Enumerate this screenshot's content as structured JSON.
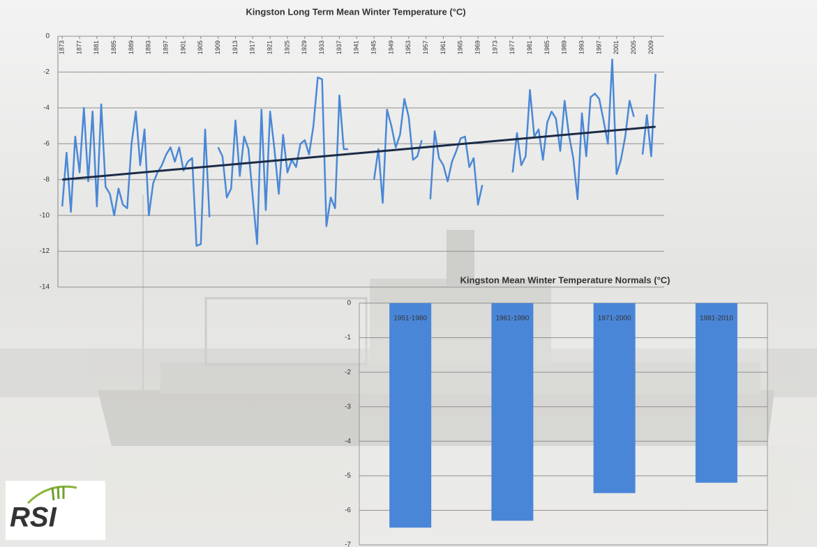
{
  "chart_data": [
    {
      "type": "line",
      "title": "Kingston Long Term Mean Winter Temperature (°C)",
      "x": [
        1873,
        1874,
        1875,
        1876,
        1877,
        1878,
        1879,
        1880,
        1881,
        1882,
        1883,
        1884,
        1885,
        1886,
        1887,
        1888,
        1889,
        1890,
        1891,
        1892,
        1893,
        1894,
        1895,
        1896,
        1897,
        1898,
        1899,
        1900,
        1901,
        1902,
        1903,
        1904,
        1905,
        1906,
        1907,
        1908,
        1909,
        1910,
        1911,
        1912,
        1913,
        1914,
        1915,
        1916,
        1917,
        1918,
        1919,
        1920,
        1921,
        1922,
        1923,
        1924,
        1925,
        1926,
        1927,
        1928,
        1929,
        1930,
        1931,
        1932,
        1933,
        1934,
        1935,
        1936,
        1937,
        1938,
        1939,
        1940,
        1941,
        1942,
        1943,
        1944,
        1945,
        1946,
        1947,
        1948,
        1949,
        1950,
        1951,
        1952,
        1953,
        1954,
        1955,
        1956,
        1957,
        1958,
        1959,
        1960,
        1961,
        1962,
        1963,
        1964,
        1965,
        1966,
        1967,
        1968,
        1969,
        1970,
        1971,
        1972,
        1973,
        1974,
        1975,
        1976,
        1977,
        1978,
        1979,
        1980,
        1981,
        1982,
        1983,
        1984,
        1985,
        1986,
        1987,
        1988,
        1989,
        1990,
        1991,
        1992,
        1993,
        1994,
        1995,
        1996,
        1997,
        1998,
        1999,
        2000,
        2001,
        2002,
        2003,
        2004,
        2005,
        2006,
        2007,
        2008,
        2009,
        2010
      ],
      "series": [
        {
          "color": "#4a88d6",
          "values": [
            -9.5,
            -6.5,
            -9.8,
            -5.6,
            -7.6,
            -4.0,
            -8.1,
            -4.2,
            -9.5,
            -3.8,
            -8.4,
            -8.8,
            -10.0,
            -8.5,
            -9.4,
            -9.6,
            -6.0,
            -4.2,
            -7.2,
            -5.2,
            -10.0,
            -8.2,
            -7.6,
            -7.2,
            -6.6,
            -6.2,
            -7.0,
            -6.2,
            -7.5,
            -7.0,
            -6.8,
            -11.7,
            -11.6,
            -5.2,
            -10.1,
            null,
            -6.2,
            -6.7,
            -9.0,
            -8.5,
            -4.7,
            -7.8,
            -5.6,
            -6.3,
            -9.0,
            -11.6,
            -4.1,
            -9.7,
            -4.2,
            -6.3,
            -8.8,
            -5.5,
            -7.6,
            -6.9,
            -7.3,
            -6.0,
            -5.8,
            -6.6,
            -5.0,
            -2.3,
            -2.4,
            -10.6,
            -9.0,
            -9.6,
            -3.3,
            -6.3,
            -6.3,
            null,
            null,
            null,
            null,
            null,
            -8.0,
            -6.3,
            -9.3,
            -4.1,
            -5.0,
            -6.2,
            -5.5,
            -3.5,
            -4.5,
            -6.9,
            -6.7,
            -5.8,
            null,
            -9.1,
            -5.3,
            -6.8,
            -7.2,
            -8.1,
            -7.0,
            -6.4,
            -5.7,
            -5.6,
            -7.3,
            -6.8,
            -9.4,
            -8.3,
            null,
            null,
            null,
            null,
            null,
            null,
            -7.6,
            -5.4,
            -7.2,
            -6.7,
            -3.0,
            -5.6,
            -5.2,
            -6.9,
            -4.8,
            -4.2,
            -4.6,
            -6.4,
            -3.6,
            -5.5,
            -6.8,
            -9.1,
            -4.3,
            -6.7,
            -3.4,
            -3.2,
            -3.5,
            -4.7,
            -6.0,
            -1.3,
            -7.7,
            -6.9,
            -5.6,
            -3.6,
            -4.5,
            null,
            -6.6,
            -4.4,
            -6.7,
            -2.1
          ]
        }
      ],
      "trend": {
        "color": "#1b2b47",
        "x": [
          1873,
          2010
        ],
        "values": [
          -8.0,
          -5.05
        ]
      },
      "xlim": [
        1872,
        2012
      ],
      "xticks": [
        1873,
        1877,
        1881,
        1885,
        1889,
        1893,
        1897,
        1901,
        1905,
        1909,
        1913,
        1917,
        1921,
        1925,
        1929,
        1933,
        1937,
        1941,
        1945,
        1949,
        1953,
        1957,
        1961,
        1965,
        1969,
        1973,
        1977,
        1981,
        1985,
        1989,
        1993,
        1997,
        2001,
        2005,
        2009
      ],
      "ylim": [
        -14,
        0
      ],
      "yticks": [
        0,
        -2,
        -4,
        -6,
        -8,
        -10,
        -12,
        -14
      ],
      "grid": true
    },
    {
      "type": "bar",
      "title": "Kingston Mean Winter Temperature Normals (°C)",
      "categories": [
        "1951-1980",
        "1961-1990",
        "1971-2000",
        "1981-2010"
      ],
      "values": [
        -6.5,
        -6.3,
        -5.5,
        -5.2
      ],
      "color": "#4a86d8",
      "ylim": [
        -7,
        0
      ],
      "yticks": [
        0,
        -1,
        -2,
        -3,
        -4,
        -5,
        -6,
        -7
      ],
      "grid": true
    }
  ],
  "logo": {
    "text": "RSI"
  }
}
